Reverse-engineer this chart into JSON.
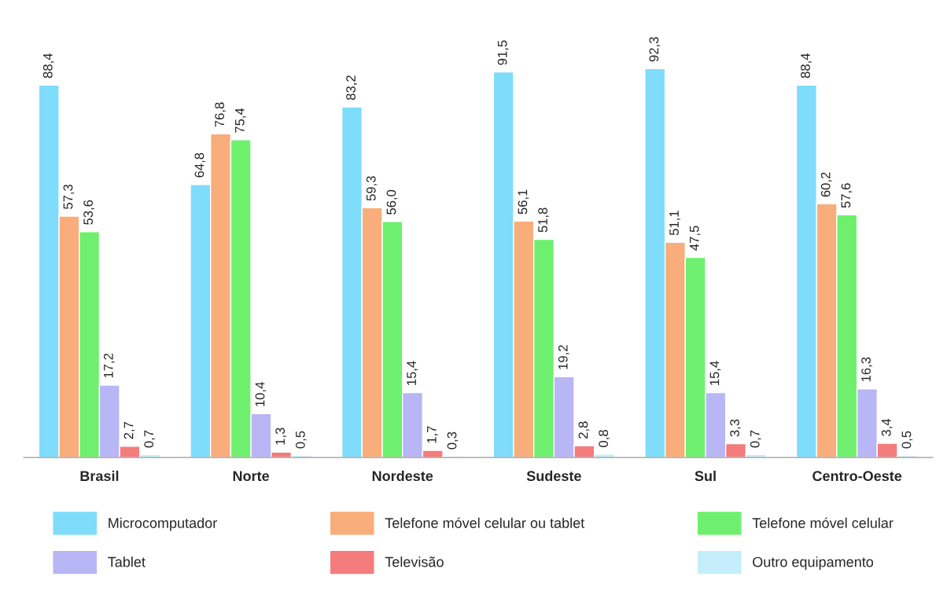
{
  "chart_data": {
    "type": "bar",
    "categories": [
      "Brasil",
      "Norte",
      "Nordeste",
      "Sudeste",
      "Sul",
      "Centro-Oeste"
    ],
    "series": [
      {
        "name": "Microcomputador",
        "color": "#7fdcfb",
        "values": [
          88.4,
          64.8,
          83.2,
          91.5,
          92.3,
          88.4
        ],
        "value_labels": [
          "88,4",
          "64,8",
          "83,2",
          "91,5",
          "92,3",
          "88,4"
        ]
      },
      {
        "name": "Telefone móvel celular ou tablet",
        "color": "#f9ad7a",
        "values": [
          57.3,
          76.8,
          59.3,
          56.1,
          51.1,
          60.2
        ],
        "value_labels": [
          "57,3",
          "76,8",
          "59,3",
          "56,1",
          "51,1",
          "60,2"
        ]
      },
      {
        "name": "Telefone móvel celular",
        "color": "#6ef06e",
        "values": [
          53.6,
          75.4,
          56.0,
          51.8,
          47.5,
          57.6
        ],
        "value_labels": [
          "53,6",
          "75,4",
          "56,0",
          "51,8",
          "47,5",
          "57,6"
        ]
      },
      {
        "name": "Tablet",
        "color": "#b8b6f5",
        "values": [
          17.2,
          10.4,
          15.4,
          19.2,
          15.4,
          16.3
        ],
        "value_labels": [
          "17,2",
          "10,4",
          "15,4",
          "19,2",
          "15,4",
          "16,3"
        ]
      },
      {
        "name": "Televisão",
        "color": "#f47c7c",
        "values": [
          2.7,
          1.3,
          1.7,
          2.8,
          3.3,
          3.4
        ],
        "value_labels": [
          "2,7",
          "1,3",
          "1,7",
          "2,8",
          "3,3",
          "3,4"
        ]
      },
      {
        "name": "Outro equipamento",
        "color": "#c5eefb",
        "values": [
          0.7,
          0.5,
          0.3,
          0.8,
          0.7,
          0.5
        ],
        "value_labels": [
          "0,7",
          "0,5",
          "0,3",
          "0,8",
          "0,7",
          "0,5"
        ]
      }
    ],
    "tick_labels": "x",
    "grid": false,
    "legend": "bottom"
  }
}
